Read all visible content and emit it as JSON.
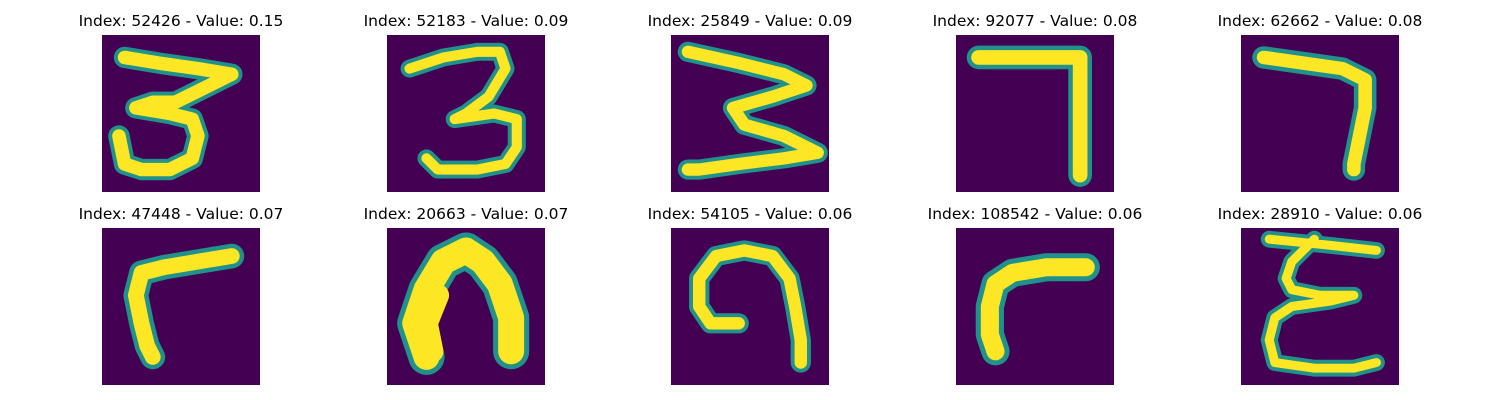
{
  "figure": {
    "colormap": "viridis",
    "colors": {
      "background": "#440154",
      "glow": "#21918c",
      "stroke": "#fde725"
    }
  },
  "panels": [
    {
      "title": "Index: 52426 - Value: 0.15",
      "index": 52426,
      "value": 0.15
    },
    {
      "title": "Index: 52183 - Value: 0.09",
      "index": 52183,
      "value": 0.09
    },
    {
      "title": "Index: 25849 - Value: 0.09",
      "index": 25849,
      "value": 0.09
    },
    {
      "title": "Index: 92077 - Value: 0.08",
      "index": 92077,
      "value": 0.08
    },
    {
      "title": "Index: 62662 - Value: 0.08",
      "index": 62662,
      "value": 0.08
    },
    {
      "title": "Index: 47448 - Value: 0.07",
      "index": 47448,
      "value": 0.07
    },
    {
      "title": "Index: 20663 - Value: 0.07",
      "index": 20663,
      "value": 0.07
    },
    {
      "title": "Index: 54105 - Value: 0.06",
      "index": 54105,
      "value": 0.06
    },
    {
      "title": "Index: 108542 - Value: 0.06",
      "index": 108542,
      "value": 0.06
    },
    {
      "title": "Index: 28910 - Value: 0.06",
      "index": 28910,
      "value": 0.06
    }
  ]
}
